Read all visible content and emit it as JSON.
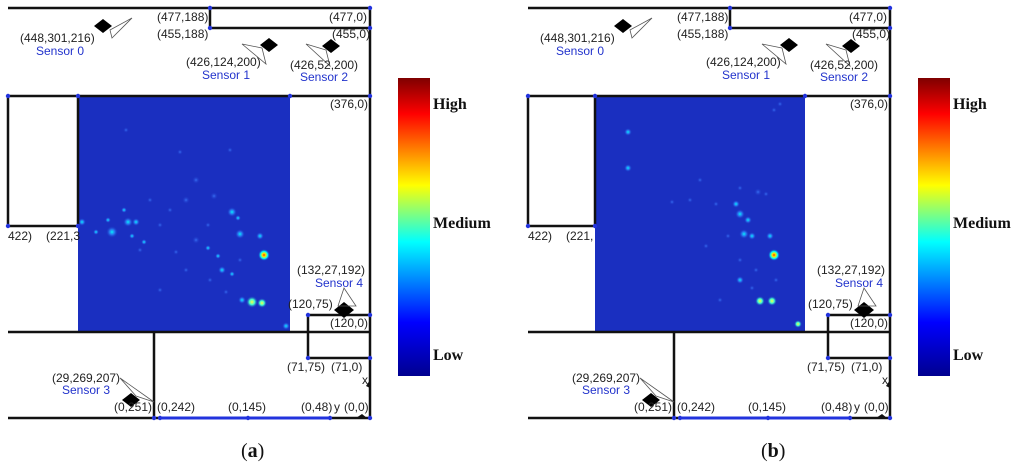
{
  "panels": [
    {
      "id": "a",
      "caption_open": "(",
      "caption_letter": "a",
      "caption_close": ")",
      "coordinates": {
        "c1": "(448,301,216)",
        "c2": "(477,188)",
        "c3": "(455,188)",
        "c4": "(477,0)",
        "c5": "(455,0)",
        "c6": "(426,124,200)",
        "c7": "(426,52,200)",
        "c8": "(376,0)",
        "c9": "422)",
        "c10": "(221,3",
        "c11": "(132,27,192)",
        "c12": "(120,75)",
        "c13": "(120,0)",
        "c14": "(71,75)",
        "c15": "(71,0)",
        "c16": "(29,269,207)",
        "c17": "(0,251)",
        "c18": "(0,242)",
        "c19": "(0,145)",
        "c20": "(0,48)",
        "c21": "(0,0)",
        "x_axis": "x",
        "y_axis": "y"
      },
      "sensors": {
        "s0": "Sensor 0",
        "s1": "Sensor 1",
        "s2": "Sensor 2",
        "s3": "Sensor 3",
        "s4": "Sensor 4"
      },
      "colorbar": {
        "high": "High",
        "medium": "Medium",
        "low": "Low"
      }
    },
    {
      "id": "b",
      "caption_open": "(",
      "caption_letter": "b",
      "caption_close": ")",
      "coordinates": {
        "c1": "(448,301,216)",
        "c2": "(477,188)",
        "c3": "(455,188)",
        "c4": "(477,0)",
        "c5": "(455,0)",
        "c6": "(426,124,200)",
        "c7": "(426,52,200)",
        "c8": "(376,0)",
        "c9": "422)",
        "c10": "(221,",
        "c11": "(132,27,192)",
        "c12": "(120,75)",
        "c13": "(120,0)",
        "c14": "(71,75)",
        "c15": "(71,0)",
        "c16": "(29,269,207)",
        "c17": "(0,251)",
        "c18": "(0,242)",
        "c19": "(0,145)",
        "c20": "(0,48)",
        "c21": "(0,0)",
        "x_axis": "x",
        "y_axis": "y"
      },
      "sensors": {
        "s0": "Sensor 0",
        "s1": "Sensor 1",
        "s2": "Sensor 2",
        "s3": "Sensor 3",
        "s4": "Sensor 4"
      },
      "colorbar": {
        "high": "High",
        "medium": "Medium",
        "low": "Low"
      }
    }
  ],
  "colors": {
    "colormap": [
      "#7f0000",
      "#ff0000",
      "#ffff00",
      "#00ffff",
      "#0000ff",
      "#00008f"
    ],
    "heatmap_background": "#1a2fc0",
    "walls": "#111111",
    "corner_markers": "#2233dd",
    "sensor_labels": "#2233cc"
  }
}
